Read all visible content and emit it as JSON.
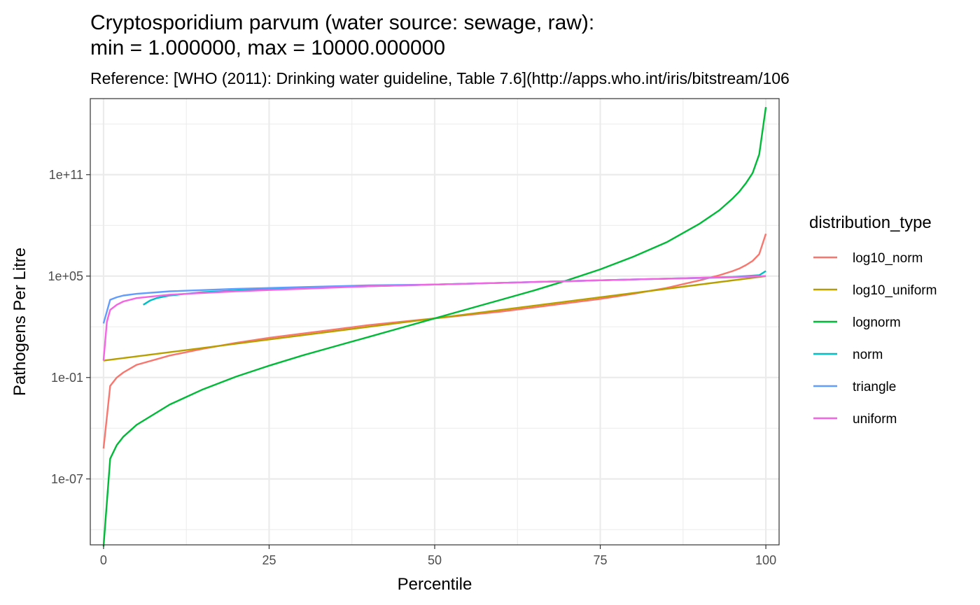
{
  "chart_data": {
    "type": "line",
    "title_line1": "Cryptosporidium parvum (water source: sewage, raw):",
    "title_line2": "min = 1.000000, max = 10000.000000",
    "subtitle": "Reference: [WHO (2011): Drinking water guideline, Table 7.6](http://apps.who.int/iris/bitstream/106",
    "xlabel": "Percentile",
    "ylabel": "Pathogens Per Litre",
    "y_scale": "log10",
    "xlim": [
      -2,
      102
    ],
    "ylim_log10": [
      -10.9,
      15.5
    ],
    "x_ticks": [
      0,
      25,
      50,
      75,
      100
    ],
    "x_tick_labels": [
      "0",
      "25",
      "50",
      "75",
      "100"
    ],
    "x_minor_ticks": [
      12.5,
      37.5,
      62.5,
      87.5
    ],
    "y_ticks_log10": [
      -7,
      -1,
      5,
      11
    ],
    "y_tick_labels": [
      "1e-07",
      "1e-01",
      "1e+05",
      "1e+11"
    ],
    "y_minor_ticks_log10": [
      -10,
      -4,
      2,
      8,
      14
    ],
    "legend_title": "distribution_type",
    "legend_position": "right",
    "grid": true,
    "series": [
      {
        "name": "log10_norm",
        "color": "#F8766D",
        "points": [
          [
            0,
            -5.2
          ],
          [
            1,
            -1.5
          ],
          [
            2,
            -1.0
          ],
          [
            3,
            -0.7
          ],
          [
            5,
            -0.25
          ],
          [
            10,
            0.3
          ],
          [
            15,
            0.7
          ],
          [
            20,
            1.05
          ],
          [
            25,
            1.35
          ],
          [
            30,
            1.6
          ],
          [
            35,
            1.85
          ],
          [
            40,
            2.1
          ],
          [
            45,
            2.3
          ],
          [
            50,
            2.5
          ],
          [
            55,
            2.7
          ],
          [
            60,
            2.9
          ],
          [
            65,
            3.15
          ],
          [
            70,
            3.4
          ],
          [
            75,
            3.65
          ],
          [
            80,
            3.95
          ],
          [
            85,
            4.3
          ],
          [
            90,
            4.75
          ],
          [
            93,
            5.05
          ],
          [
            95,
            5.3
          ],
          [
            96,
            5.45
          ],
          [
            97,
            5.65
          ],
          [
            98,
            5.9
          ],
          [
            99,
            6.3
          ],
          [
            100,
            7.5
          ]
        ]
      },
      {
        "name": "log10_uniform",
        "color": "#B79F00",
        "points": [
          [
            0,
            0.0
          ],
          [
            50,
            2.5
          ],
          [
            100,
            5.0
          ]
        ]
      },
      {
        "name": "lognorm",
        "color": "#00BA38",
        "points": [
          [
            0,
            -11.0
          ],
          [
            1,
            -5.8
          ],
          [
            2,
            -5.0
          ],
          [
            3,
            -4.5
          ],
          [
            5,
            -3.8
          ],
          [
            10,
            -2.6
          ],
          [
            15,
            -1.7
          ],
          [
            20,
            -0.95
          ],
          [
            25,
            -0.3
          ],
          [
            30,
            0.3
          ],
          [
            35,
            0.85
          ],
          [
            40,
            1.4
          ],
          [
            45,
            1.95
          ],
          [
            50,
            2.5
          ],
          [
            55,
            3.05
          ],
          [
            60,
            3.6
          ],
          [
            65,
            4.15
          ],
          [
            70,
            4.75
          ],
          [
            75,
            5.4
          ],
          [
            80,
            6.15
          ],
          [
            85,
            7.0
          ],
          [
            90,
            8.1
          ],
          [
            93,
            8.9
          ],
          [
            95,
            9.6
          ],
          [
            96,
            10.0
          ],
          [
            97,
            10.5
          ],
          [
            98,
            11.1
          ],
          [
            99,
            12.2
          ],
          [
            100,
            15.0
          ]
        ]
      },
      {
        "name": "norm",
        "color": "#00BFC4",
        "points": [
          [
            6,
            3.3
          ],
          [
            7,
            3.55
          ],
          [
            8,
            3.7
          ],
          [
            10,
            3.85
          ],
          [
            15,
            4.05
          ],
          [
            20,
            4.15
          ],
          [
            30,
            4.3
          ],
          [
            40,
            4.4
          ],
          [
            50,
            4.5
          ],
          [
            60,
            4.6
          ],
          [
            70,
            4.7
          ],
          [
            80,
            4.8
          ],
          [
            90,
            4.9
          ],
          [
            95,
            4.95
          ],
          [
            99,
            5.05
          ],
          [
            100,
            5.3
          ]
        ]
      },
      {
        "name": "triangle",
        "color": "#619CFF",
        "points": [
          [
            0,
            2.2
          ],
          [
            1,
            3.6
          ],
          [
            2,
            3.75
          ],
          [
            3,
            3.85
          ],
          [
            5,
            3.95
          ],
          [
            10,
            4.1
          ],
          [
            20,
            4.25
          ],
          [
            30,
            4.35
          ],
          [
            40,
            4.45
          ],
          [
            50,
            4.5
          ],
          [
            60,
            4.6
          ],
          [
            70,
            4.7
          ],
          [
            80,
            4.8
          ],
          [
            90,
            4.88
          ],
          [
            95,
            4.93
          ],
          [
            100,
            5.0
          ]
        ]
      },
      {
        "name": "uniform",
        "color": "#F564E3",
        "points": [
          [
            0,
            0.0
          ],
          [
            0.5,
            2.3
          ],
          [
            1,
            3.0
          ],
          [
            2,
            3.3
          ],
          [
            3,
            3.5
          ],
          [
            5,
            3.7
          ],
          [
            10,
            3.9
          ],
          [
            20,
            4.1
          ],
          [
            30,
            4.25
          ],
          [
            40,
            4.4
          ],
          [
            50,
            4.5
          ],
          [
            60,
            4.6
          ],
          [
            70,
            4.7
          ],
          [
            80,
            4.8
          ],
          [
            90,
            4.9
          ],
          [
            100,
            5.0
          ]
        ]
      }
    ]
  }
}
